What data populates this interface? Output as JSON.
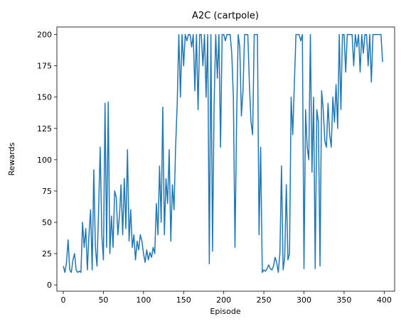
{
  "chart_data": {
    "type": "line",
    "title": "A2C (cartpole)",
    "x_label": "Episode",
    "y_label": "Rewards",
    "x": [
      0,
      2,
      4,
      6,
      8,
      10,
      12,
      14,
      16,
      18,
      20,
      22,
      24,
      26,
      28,
      30,
      32,
      34,
      36,
      38,
      40,
      42,
      44,
      46,
      48,
      50,
      52,
      54,
      56,
      58,
      60,
      62,
      64,
      66,
      68,
      70,
      72,
      74,
      76,
      78,
      80,
      82,
      84,
      86,
      88,
      90,
      92,
      94,
      96,
      98,
      100,
      102,
      104,
      106,
      108,
      110,
      112,
      114,
      116,
      118,
      120,
      122,
      124,
      126,
      128,
      130,
      132,
      134,
      136,
      138,
      140,
      142,
      144,
      146,
      148,
      150,
      152,
      154,
      156,
      158,
      160,
      162,
      164,
      166,
      168,
      170,
      172,
      174,
      176,
      178,
      180,
      182,
      184,
      186,
      188,
      190,
      192,
      194,
      196,
      198,
      200,
      202,
      204,
      206,
      208,
      210,
      212,
      214,
      216,
      218,
      220,
      222,
      224,
      226,
      228,
      230,
      232,
      234,
      236,
      238,
      240,
      242,
      244,
      246,
      248,
      250,
      252,
      254,
      256,
      258,
      260,
      262,
      264,
      266,
      268,
      270,
      272,
      274,
      276,
      278,
      280,
      282,
      284,
      286,
      288,
      290,
      292,
      294,
      296,
      298,
      300,
      302,
      304,
      306,
      308,
      310,
      312,
      314,
      316,
      318,
      320,
      322,
      324,
      326,
      328,
      330,
      332,
      334,
      336,
      338,
      340,
      342,
      344,
      346,
      348,
      350,
      352,
      354,
      356,
      358,
      360,
      362,
      364,
      366,
      368,
      370,
      372,
      374,
      376,
      378,
      380,
      382,
      384,
      386,
      388,
      390,
      392,
      394,
      396,
      398
    ],
    "series": [
      {
        "name": "rewards",
        "color": "#1f77b4",
        "values": [
          15,
          10,
          18,
          36,
          12,
          10,
          20,
          25,
          12,
          10,
          11,
          10,
          50,
          30,
          45,
          12,
          40,
          60,
          12,
          92,
          30,
          15,
          60,
          110,
          40,
          20,
          145,
          30,
          146,
          25,
          55,
          30,
          75,
          70,
          40,
          55,
          80,
          40,
          85,
          45,
          108,
          35,
          60,
          30,
          40,
          20,
          35,
          28,
          40,
          35,
          25,
          18,
          28,
          20,
          26,
          22,
          30,
          25,
          65,
          40,
          95,
          50,
          142,
          40,
          85,
          65,
          108,
          35,
          80,
          60,
          110,
          145,
          200,
          150,
          200,
          175,
          200,
          195,
          200,
          200,
          190,
          200,
          155,
          200,
          140,
          200,
          200,
          175,
          200,
          150,
          200,
          17,
          200,
          27,
          145,
          200,
          165,
          200,
          110,
          200,
          200,
          195,
          200,
          200,
          200,
          185,
          150,
          30,
          130,
          200,
          190,
          135,
          155,
          200,
          200,
          200,
          160,
          130,
          120,
          200,
          200,
          200,
          40,
          110,
          10,
          12,
          11,
          13,
          16,
          13,
          12,
          15,
          22,
          18,
          10,
          25,
          95,
          12,
          22,
          80,
          20,
          25,
          150,
          120,
          160,
          200,
          200,
          200,
          195,
          200,
          13,
          140,
          110,
          100,
          200,
          90,
          150,
          13,
          140,
          130,
          15,
          155,
          140,
          115,
          110,
          145,
          120,
          110,
          150,
          130,
          160,
          125,
          200,
          140,
          200,
          200,
          170,
          200,
          200,
          200,
          200,
          175,
          200,
          190,
          200,
          170,
          200,
          185,
          200,
          200,
          175,
          200,
          162,
          200,
          200,
          200,
          200,
          200,
          200,
          178
        ]
      }
    ],
    "xlim": [
      -8,
      413
    ],
    "ylim": [
      -5,
      206
    ],
    "xticks": [
      0,
      50,
      100,
      150,
      200,
      250,
      300,
      350,
      400
    ],
    "yticks": [
      0,
      25,
      50,
      75,
      100,
      125,
      150,
      175,
      200
    ]
  }
}
